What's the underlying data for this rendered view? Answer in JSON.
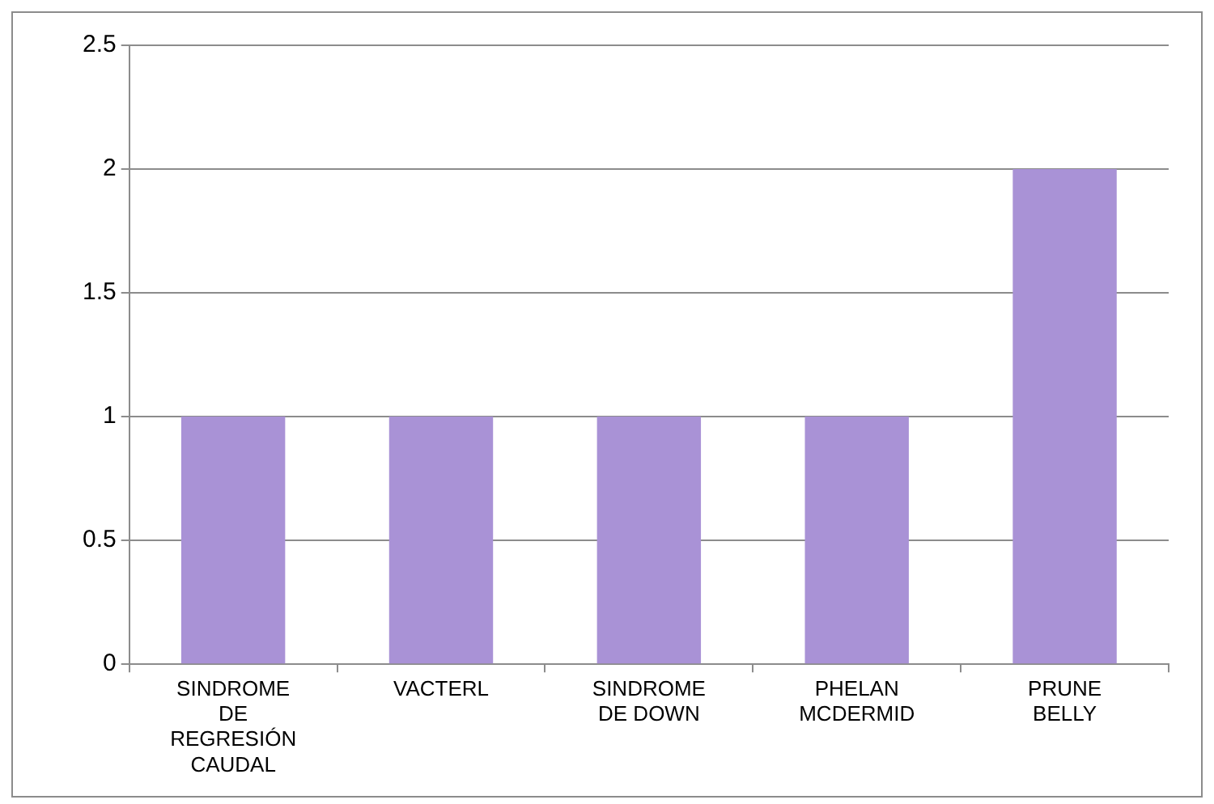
{
  "chart_data": {
    "type": "bar",
    "categories": [
      "SINDROME DE REGRESIÓN CAUDAL",
      "VACTERL",
      "SINDROME DE DOWN",
      "PHELAN MCDERMID",
      "PRUNE BELLY"
    ],
    "values": [
      1,
      1,
      1,
      1,
      2
    ],
    "color": "#a992d6",
    "ylim": [
      0,
      2.5
    ],
    "yticks": [
      0,
      0.5,
      1,
      1.5,
      2,
      2.5
    ],
    "grid": "y",
    "legend": false
  }
}
